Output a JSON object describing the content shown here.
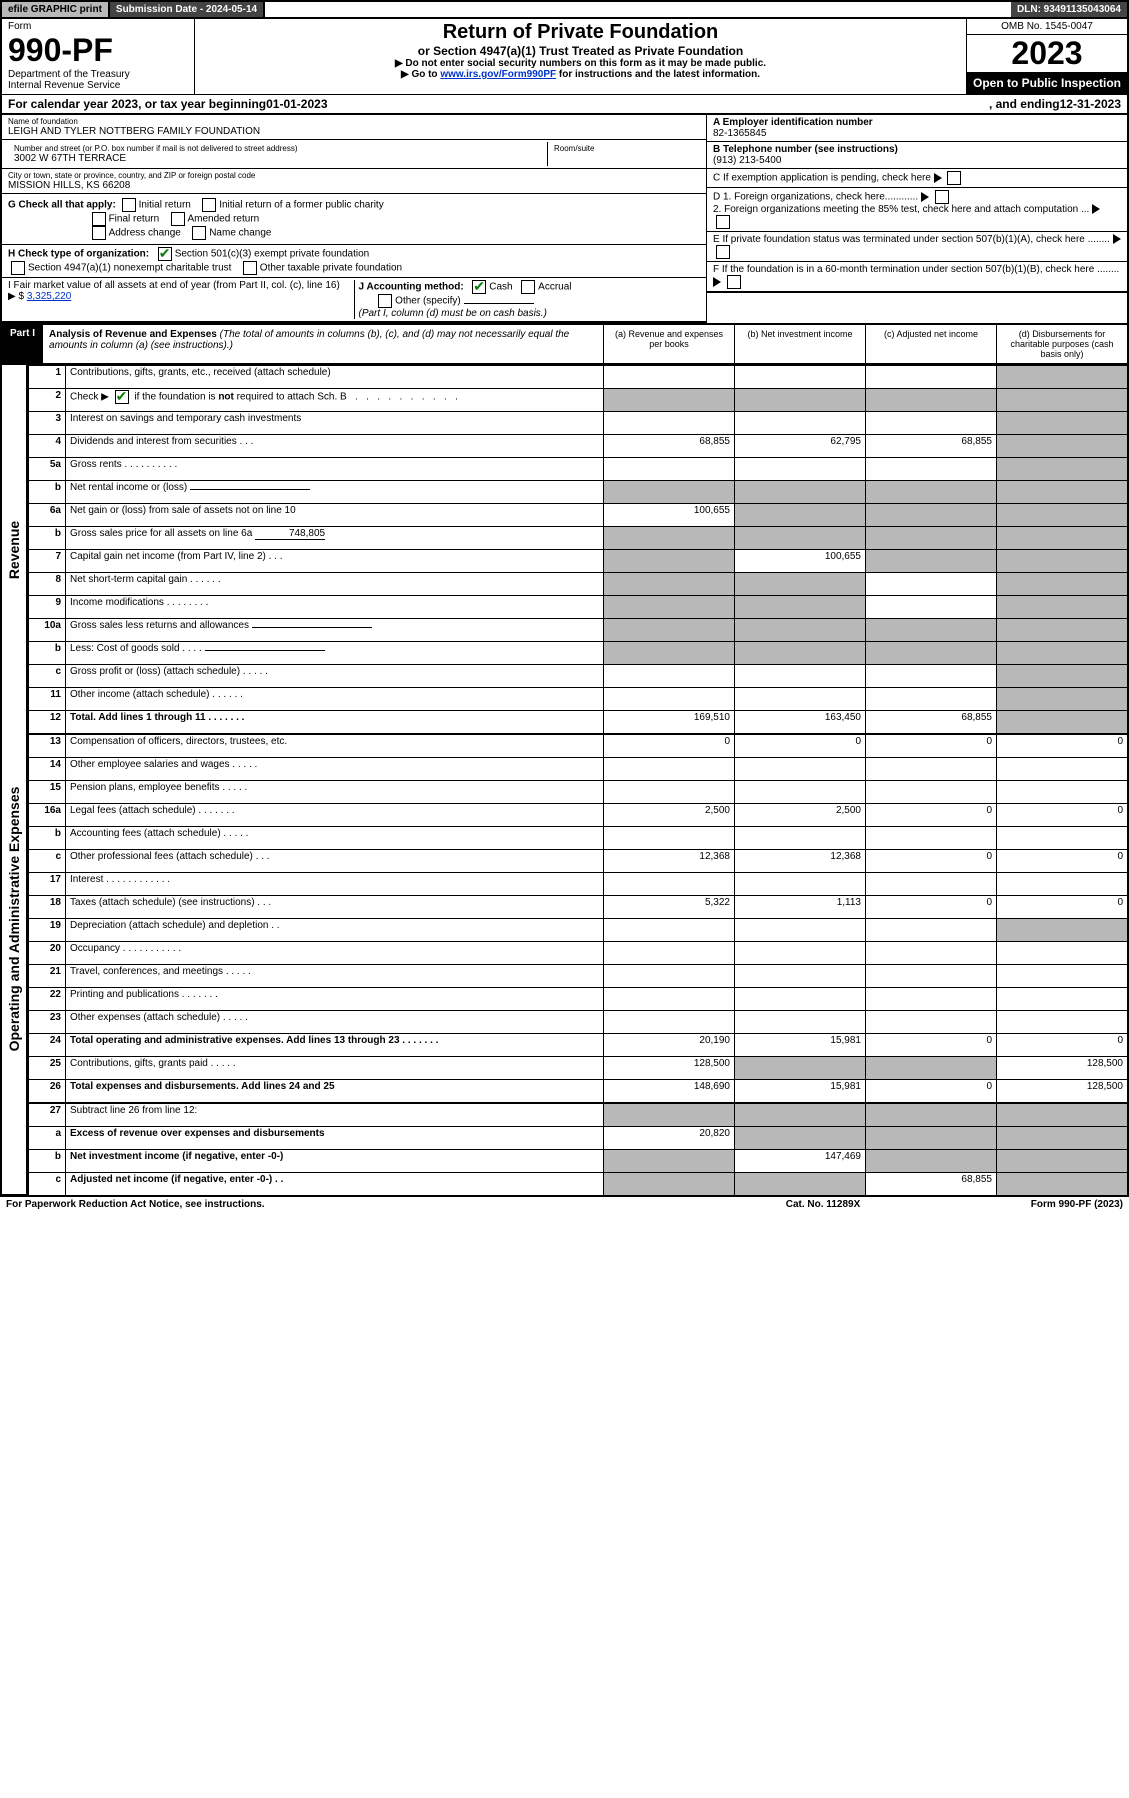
{
  "topbar": {
    "efile": "efile GRAPHIC print",
    "sub_label": "Submission Date - 2024-05-14",
    "dln": "DLN: 93491135043064"
  },
  "header": {
    "form_label": "Form",
    "form_no": "990-PF",
    "dept": "Department of the Treasury",
    "irs": "Internal Revenue Service",
    "title": "Return of Private Foundation",
    "subtitle": "or Section 4947(a)(1) Trust Treated as Private Foundation",
    "inst1": "▶ Do not enter social security numbers on this form as it may be made public.",
    "inst2_pre": "▶ Go to ",
    "inst2_link": "www.irs.gov/Form990PF",
    "inst2_post": " for instructions and the latest information.",
    "omb": "OMB No. 1545-0047",
    "year": "2023",
    "open_pub": "Open to Public Inspection"
  },
  "cal": {
    "text_a": "For calendar year 2023, or tax year beginning ",
    "begin": "01-01-2023",
    "text_b": ", and ending ",
    "end": "12-31-2023"
  },
  "id": {
    "name_label": "Name of foundation",
    "name": "LEIGH AND TYLER NOTTBERG FAMILY FOUNDATION",
    "addr_label": "Number and street (or P.O. box number if mail is not delivered to street address)",
    "addr": "3002 W 67TH TERRACE",
    "room_label": "Room/suite",
    "room": "",
    "city_label": "City or town, state or province, country, and ZIP or foreign postal code",
    "city": "MISSION HILLS, KS  66208",
    "ein_label_bold": "A Employer identification number",
    "ein": "82-1365845",
    "tel_label": "B Telephone number (see instructions)",
    "tel": "(913) 213-5400",
    "c_label": "C If exemption application is pending, check here",
    "d1": "D 1. Foreign organizations, check here............",
    "d2": "2. Foreign organizations meeting the 85% test, check here and attach computation ...",
    "e": "E  If private foundation status was terminated under section 507(b)(1)(A), check here ........",
    "f": "F  If the foundation is in a 60-month termination under section 507(b)(1)(B), check here ........"
  },
  "g": {
    "label": "G Check all that apply:",
    "opts": [
      "Initial return",
      "Initial return of a former public charity",
      "Final return",
      "Amended return",
      "Address change",
      "Name change"
    ]
  },
  "h": {
    "label": "H Check type of organization:",
    "o1": "Section 501(c)(3) exempt private foundation",
    "o2": "Section 4947(a)(1) nonexempt charitable trust",
    "o3": "Other taxable private foundation"
  },
  "i": {
    "label": "I Fair market value of all assets at end of year (from Part II, col. (c), line 16)",
    "val_pre": "▶ $",
    "val": "3,325,220"
  },
  "j": {
    "label": "J Accounting method:",
    "cash": "Cash",
    "accrual": "Accrual",
    "other": "Other (specify)",
    "note": "(Part I, column (d) must be on cash basis.)"
  },
  "part1": {
    "label": "Part I",
    "title": "Analysis of Revenue and Expenses",
    "note": "(The total of amounts in columns (b), (c), and (d) may not necessarily equal the amounts in column (a) (see instructions).)",
    "col_a": "(a) Revenue and expenses per books",
    "col_b": "(b) Net investment income",
    "col_c": "(c) Adjusted net income",
    "col_d": "(d) Disbursements for charitable purposes (cash basis only)"
  },
  "side": {
    "rev": "Revenue",
    "oae": "Operating and Administrative Expenses"
  },
  "rows": {
    "r1": {
      "no": "1",
      "label": "Contributions, gifts, grants, etc., received (attach schedule)",
      "a": "",
      "b": "",
      "c": "",
      "d": ""
    },
    "r2": {
      "no": "2",
      "label": "Check ▶ ☑ if the foundation is not required to attach Sch. B",
      "a": "",
      "b": "",
      "c": "",
      "d": ""
    },
    "r3": {
      "no": "3",
      "label": "Interest on savings and temporary cash investments",
      "a": "",
      "b": "",
      "c": "",
      "d": ""
    },
    "r4": {
      "no": "4",
      "label": "Dividends and interest from securities   .   .   .",
      "a": "68,855",
      "b": "62,795",
      "c": "68,855",
      "d": ""
    },
    "r5a": {
      "no": "5a",
      "label": "Gross rents   .   .   .   .   .   .   .   .   .   .",
      "a": "",
      "b": "",
      "c": "",
      "d": ""
    },
    "r5b": {
      "no": "b",
      "label": "Net rental income or (loss)",
      "a": "",
      "b": "",
      "c": "",
      "d": ""
    },
    "r6a": {
      "no": "6a",
      "label": "Net gain or (loss) from sale of assets not on line 10",
      "a": "100,655",
      "b": "",
      "c": "",
      "d": ""
    },
    "r6b": {
      "no": "b",
      "label": "Gross sales price for all assets on line 6a",
      "sub": "748,805",
      "a": "",
      "b": "",
      "c": "",
      "d": ""
    },
    "r7": {
      "no": "7",
      "label": "Capital gain net income (from Part IV, line 2)   .   .   .",
      "a": "",
      "b": "100,655",
      "c": "",
      "d": ""
    },
    "r8": {
      "no": "8",
      "label": "Net short-term capital gain   .   .   .   .   .   .",
      "a": "",
      "b": "",
      "c": "",
      "d": ""
    },
    "r9": {
      "no": "9",
      "label": "Income modifications   .   .   .   .   .   .   .   .",
      "a": "",
      "b": "",
      "c": "",
      "d": ""
    },
    "r10a": {
      "no": "10a",
      "label": "Gross sales less returns and allowances",
      "a": "",
      "b": "",
      "c": "",
      "d": ""
    },
    "r10b": {
      "no": "b",
      "label": "Less: Cost of goods sold   .   .   .   .",
      "a": "",
      "b": "",
      "c": "",
      "d": ""
    },
    "r10c": {
      "no": "c",
      "label": "Gross profit or (loss) (attach schedule)   .   .   .   .   .",
      "a": "",
      "b": "",
      "c": "",
      "d": ""
    },
    "r11": {
      "no": "11",
      "label": "Other income (attach schedule)   .   .   .   .   .   .",
      "a": "",
      "b": "",
      "c": "",
      "d": ""
    },
    "r12": {
      "no": "12",
      "label": "Total. Add lines 1 through 11   .   .   .   .   .   .   .",
      "a": "169,510",
      "b": "163,450",
      "c": "68,855",
      "d": "",
      "bold": true
    },
    "r13": {
      "no": "13",
      "label": "Compensation of officers, directors, trustees, etc.",
      "a": "0",
      "b": "0",
      "c": "0",
      "d": "0"
    },
    "r14": {
      "no": "14",
      "label": "Other employee salaries and wages   .   .   .   .   .",
      "a": "",
      "b": "",
      "c": "",
      "d": ""
    },
    "r15": {
      "no": "15",
      "label": "Pension plans, employee benefits   .   .   .   .   .",
      "a": "",
      "b": "",
      "c": "",
      "d": ""
    },
    "r16a": {
      "no": "16a",
      "label": "Legal fees (attach schedule)   .   .   .   .   .   .   .",
      "a": "2,500",
      "b": "2,500",
      "c": "0",
      "d": "0"
    },
    "r16b": {
      "no": "b",
      "label": "Accounting fees (attach schedule)   .   .   .   .   .",
      "a": "",
      "b": "",
      "c": "",
      "d": ""
    },
    "r16c": {
      "no": "c",
      "label": "Other professional fees (attach schedule)   .   .   .",
      "a": "12,368",
      "b": "12,368",
      "c": "0",
      "d": "0"
    },
    "r17": {
      "no": "17",
      "label": "Interest   .   .   .   .   .   .   .   .   .   .   .   .",
      "a": "",
      "b": "",
      "c": "",
      "d": ""
    },
    "r18": {
      "no": "18",
      "label": "Taxes (attach schedule) (see instructions)   .   .   .",
      "a": "5,322",
      "b": "1,113",
      "c": "0",
      "d": "0"
    },
    "r19": {
      "no": "19",
      "label": "Depreciation (attach schedule) and depletion   .   .",
      "a": "",
      "b": "",
      "c": "",
      "d": ""
    },
    "r20": {
      "no": "20",
      "label": "Occupancy   .   .   .   .   .   .   .   .   .   .   .",
      "a": "",
      "b": "",
      "c": "",
      "d": ""
    },
    "r21": {
      "no": "21",
      "label": "Travel, conferences, and meetings   .   .   .   .   .",
      "a": "",
      "b": "",
      "c": "",
      "d": ""
    },
    "r22": {
      "no": "22",
      "label": "Printing and publications   .   .   .   .   .   .   .",
      "a": "",
      "b": "",
      "c": "",
      "d": ""
    },
    "r23": {
      "no": "23",
      "label": "Other expenses (attach schedule)   .   .   .   .   .",
      "a": "",
      "b": "",
      "c": "",
      "d": ""
    },
    "r24": {
      "no": "24",
      "label": "Total operating and administrative expenses. Add lines 13 through 23   .   .   .   .   .   .   .",
      "a": "20,190",
      "b": "15,981",
      "c": "0",
      "d": "0",
      "bold": true
    },
    "r25": {
      "no": "25",
      "label": "Contributions, gifts, grants paid   .   .   .   .   .",
      "a": "128,500",
      "b": "",
      "c": "",
      "d": "128,500"
    },
    "r26": {
      "no": "26",
      "label": "Total expenses and disbursements. Add lines 24 and 25",
      "a": "148,690",
      "b": "15,981",
      "c": "0",
      "d": "128,500",
      "bold": true
    },
    "r27": {
      "no": "27",
      "label": "Subtract line 26 from line 12:",
      "a": "",
      "b": "",
      "c": "",
      "d": ""
    },
    "r27a": {
      "no": "a",
      "label": "Excess of revenue over expenses and disbursements",
      "a": "20,820",
      "b": "",
      "c": "",
      "d": "",
      "bold": true
    },
    "r27b": {
      "no": "b",
      "label": "Net investment income (if negative, enter -0-)",
      "a": "",
      "b": "147,469",
      "c": "",
      "d": "",
      "bold": true
    },
    "r27c": {
      "no": "c",
      "label": "Adjusted net income (if negative, enter -0-)   .   .",
      "a": "",
      "b": "",
      "c": "68,855",
      "d": "",
      "bold": true
    }
  },
  "footer": {
    "left": "For Paperwork Reduction Act Notice, see instructions.",
    "mid": "Cat. No. 11289X",
    "right": "Form 990-PF (2023)"
  },
  "shade_map": {
    "r1": [
      "d"
    ],
    "r2": [
      "a",
      "b",
      "c",
      "d"
    ],
    "r3": [
      "d"
    ],
    "r4": [
      "d"
    ],
    "r5a": [
      "d"
    ],
    "r5b": [
      "a",
      "b",
      "c",
      "d"
    ],
    "r6a": [
      "b",
      "c",
      "d"
    ],
    "r6b": [
      "a",
      "b",
      "c",
      "d"
    ],
    "r7": [
      "a",
      "c",
      "d"
    ],
    "r8": [
      "a",
      "b",
      "d"
    ],
    "r9": [
      "a",
      "b",
      "d"
    ],
    "r10a": [
      "a",
      "b",
      "c",
      "d"
    ],
    "r10b": [
      "a",
      "b",
      "c",
      "d"
    ],
    "r10c": [
      "d"
    ],
    "r11": [
      "d"
    ],
    "r12": [
      "d"
    ],
    "r19": [
      "d"
    ],
    "r25": [
      "b",
      "c"
    ],
    "r27": [
      "a",
      "b",
      "c",
      "d"
    ],
    "r27a": [
      "b",
      "c",
      "d"
    ],
    "r27b": [
      "a",
      "c",
      "d"
    ],
    "r27c": [
      "a",
      "b",
      "d"
    ]
  }
}
